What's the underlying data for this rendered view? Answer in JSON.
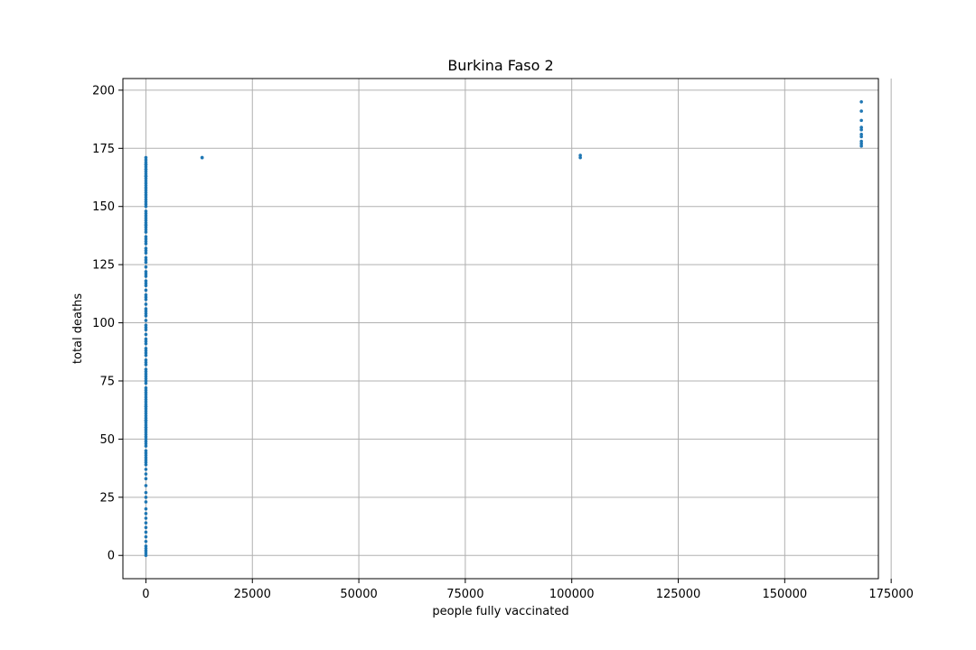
{
  "chart_data": {
    "type": "scatter",
    "title": "Burkina Faso 2",
    "xlabel": "people fully vaccinated",
    "ylabel": "total deaths",
    "xlim": [
      -5400,
      172000
    ],
    "ylim": [
      -10,
      205
    ],
    "xticks": [
      0,
      25000,
      50000,
      75000,
      100000,
      125000,
      150000,
      175000
    ],
    "yticks": [
      0,
      25,
      50,
      75,
      100,
      125,
      150,
      175,
      200
    ],
    "grid": true,
    "legend": "none",
    "marker_color": "#1f77b4",
    "series": [
      {
        "x": [
          0,
          0,
          0,
          0,
          0,
          0,
          0,
          0,
          0,
          0,
          0,
          0,
          0,
          0,
          0,
          0,
          0,
          0,
          0,
          0,
          0,
          0,
          0,
          0,
          0,
          0,
          0,
          0,
          0,
          0,
          0,
          0,
          0,
          0,
          0,
          0,
          0,
          0,
          0,
          0,
          0,
          0,
          0,
          0,
          0,
          0,
          0,
          0,
          0,
          0,
          0,
          0,
          0,
          0,
          0,
          0,
          0,
          0,
          0,
          0,
          0,
          0,
          0,
          0,
          0,
          0,
          0,
          0,
          0,
          0,
          0,
          0,
          0,
          0,
          0,
          0,
          0,
          0,
          0,
          0,
          0,
          0,
          0,
          0,
          0,
          0,
          0,
          0,
          0,
          0,
          0,
          0,
          0,
          0,
          0,
          0,
          0,
          0,
          0,
          0,
          0,
          0,
          0,
          0,
          0,
          0,
          0,
          0,
          0,
          0,
          0,
          0,
          0,
          0,
          0,
          0,
          0,
          0,
          0,
          0,
          0,
          0,
          0,
          0,
          0,
          0,
          0,
          0,
          0,
          0,
          0,
          0,
          0,
          0,
          0,
          0,
          0,
          0,
          0,
          0,
          13200,
          13200,
          102000,
          102000,
          168000,
          168000,
          168000,
          168000,
          168000,
          168000,
          168000,
          168000,
          168000,
          168000
        ],
        "y": [
          0,
          1,
          2,
          3,
          4,
          6,
          8,
          10,
          12,
          14,
          16,
          18,
          20,
          23,
          25,
          27,
          30,
          33,
          35,
          37,
          39,
          40,
          41,
          42,
          43,
          44,
          45,
          47,
          48,
          49,
          50,
          51,
          52,
          53,
          54,
          55,
          56,
          57,
          58,
          59,
          60,
          61,
          62,
          63,
          64,
          65,
          66,
          67,
          68,
          69,
          70,
          72,
          74,
          76,
          77,
          78,
          80,
          82,
          84,
          86,
          88,
          89,
          91,
          93,
          95,
          97,
          99,
          101,
          103,
          105,
          106,
          108,
          110,
          112,
          114,
          116,
          118,
          120,
          121,
          124,
          126,
          127,
          130,
          132,
          134,
          135,
          137,
          139,
          140,
          141,
          142,
          143,
          144,
          145,
          146,
          148,
          150,
          152,
          153,
          155,
          156,
          157,
          158,
          160,
          161,
          162,
          163,
          164,
          165,
          166,
          167,
          168,
          169,
          170,
          171,
          168,
          166,
          163,
          159,
          154,
          151,
          147,
          142,
          136,
          131,
          128,
          122,
          117,
          111,
          104,
          98,
          92,
          87,
          83,
          79,
          75,
          71,
          64,
          58,
          55,
          171,
          171,
          171,
          172,
          176,
          178,
          180,
          181,
          183,
          184,
          187,
          191,
          195,
          177
        ]
      }
    ]
  }
}
